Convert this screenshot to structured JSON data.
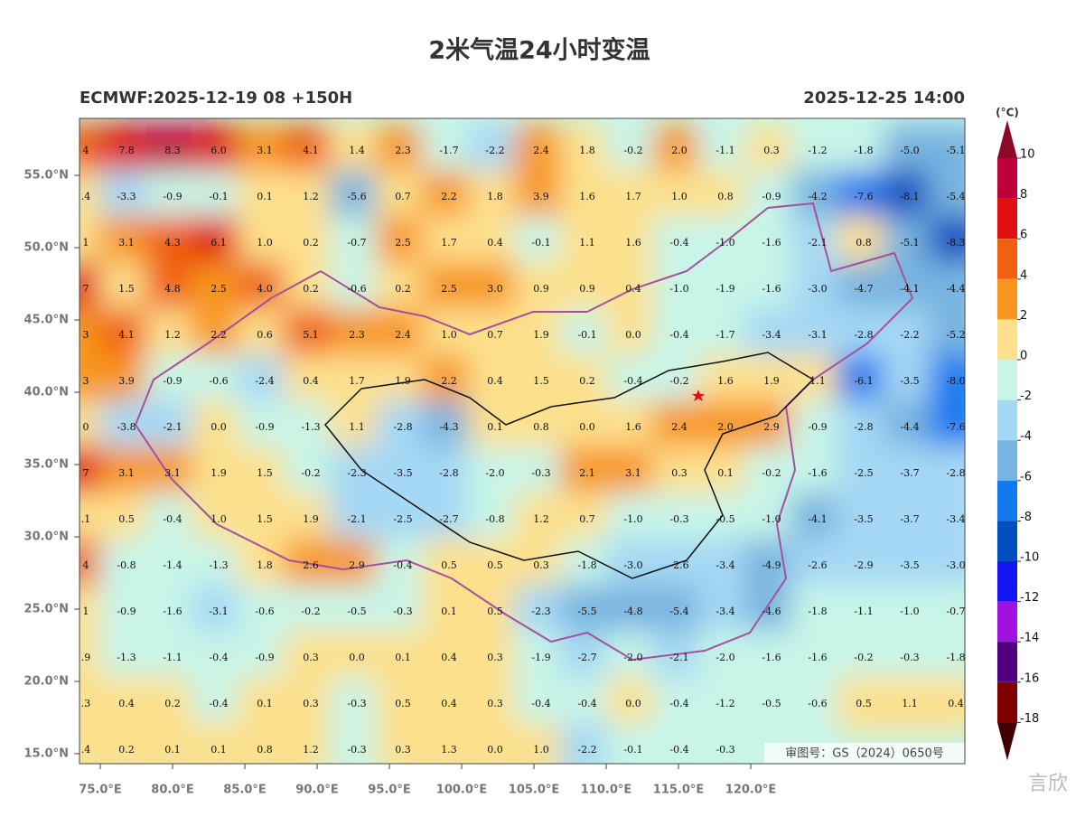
{
  "header": {
    "title": "2米气温24小时变温",
    "model_run": "ECMWF:2025-12-19 08 +150H",
    "valid_time": "2025-12-25 14:00"
  },
  "map": {
    "lonlim": [
      73.56,
      134.81
    ],
    "latlim": [
      14.31,
      58.94
    ],
    "xticks": [
      {
        "value": 75,
        "label": "75.0°E"
      },
      {
        "value": 80,
        "label": "80.0°E"
      },
      {
        "value": 85,
        "label": "85.0°E"
      },
      {
        "value": 90,
        "label": "90.0°E"
      },
      {
        "value": 95,
        "label": "95.0°E"
      },
      {
        "value": 100,
        "label": "100.0°E"
      },
      {
        "value": 105,
        "label": "105.0°E"
      },
      {
        "value": 110,
        "label": "110.0°E"
      },
      {
        "value": 115,
        "label": "115.0°E"
      },
      {
        "value": 120,
        "label": "120.0°E"
      }
    ],
    "yticks": [
      {
        "value": 55,
        "label": "55.0°N"
      },
      {
        "value": 50,
        "label": "50.0°N"
      },
      {
        "value": 45,
        "label": "45.0°N"
      },
      {
        "value": 40,
        "label": "40.0°N"
      },
      {
        "value": 35,
        "label": "35.0°N"
      },
      {
        "value": 30,
        "label": "30.0°N"
      },
      {
        "value": 25,
        "label": "25.0°N"
      },
      {
        "value": 20,
        "label": "20.0°N"
      },
      {
        "value": 15,
        "label": "15.0°N"
      }
    ],
    "grid_values": [
      [
        "4",
        "7.8",
        "8.3",
        "6.0",
        "3.1",
        "4.1",
        "1.4",
        "2.3",
        "-1.7",
        "-2.2",
        "2.4",
        "1.8",
        "-0.2",
        "2.0",
        "-1.1",
        "0.3",
        "-1.2",
        "-1.8",
        "-5.0",
        "-5.1"
      ],
      [
        ".4",
        "-3.3",
        "-0.9",
        "-0.1",
        "0.1",
        "1.2",
        "-5.6",
        "0.7",
        "2.2",
        "1.8",
        "3.9",
        "1.6",
        "1.7",
        "1.0",
        "0.8",
        "-0.9",
        "-4.2",
        "-7.6",
        "-8.1",
        "-5.4"
      ],
      [
        "1",
        "3.1",
        "4.3",
        "6.1",
        "1.0",
        "0.2",
        "-0.7",
        "2.5",
        "1.7",
        "0.4",
        "-0.1",
        "1.1",
        "1.6",
        "-0.4",
        "-1.0",
        "-1.6",
        "-2.1",
        "0.8",
        "-5.1",
        "-8.3"
      ],
      [
        "7",
        "1.5",
        "4.8",
        "2.5",
        "4.0",
        "0.2",
        "-0.6",
        "0.2",
        "2.5",
        "3.0",
        "0.9",
        "0.9",
        "0.4",
        "-1.0",
        "-1.9",
        "-1.6",
        "-3.0",
        "-4.7",
        "-4.1",
        "-4.4"
      ],
      [
        "3",
        "4.1",
        "1.2",
        "2.2",
        "0.6",
        "5.1",
        "2.3",
        "2.4",
        "1.0",
        "0.7",
        "1.9",
        "-0.1",
        "0.0",
        "-0.4",
        "-1.7",
        "-3.4",
        "-3.1",
        "-2.8",
        "-2.2",
        "-5.2"
      ],
      [
        "3",
        "3.9",
        "-0.9",
        "-0.6",
        "-2.4",
        "0.4",
        "1.7",
        "1.9",
        "2.2",
        "0.4",
        "1.5",
        "0.2",
        "-0.4",
        "-0.2",
        "1.6",
        "1.9",
        "1.1",
        "-6.1",
        "-3.5",
        "-8.0"
      ],
      [
        "0",
        "-3.8",
        "-2.1",
        "0.0",
        "-0.9",
        "-1.3",
        "1.1",
        "-2.8",
        "-4.3",
        "0.1",
        "0.8",
        "0.0",
        "1.6",
        "2.4",
        "2.0",
        "2.9",
        "-0.9",
        "-2.8",
        "-4.4",
        "-7.6"
      ],
      [
        "7",
        "3.1",
        "3.1",
        "1.9",
        "1.5",
        "-0.2",
        "-2.3",
        "-3.5",
        "-2.8",
        "-2.0",
        "-0.3",
        "2.1",
        "3.1",
        "0.3",
        "0.1",
        "-0.2",
        "-1.6",
        "-2.5",
        "-3.7",
        "-2.8"
      ],
      [
        ".1",
        "0.5",
        "-0.4",
        "1.0",
        "1.5",
        "1.9",
        "-2.1",
        "-2.5",
        "-2.7",
        "-0.8",
        "1.2",
        "0.7",
        "-1.0",
        "-0.3",
        "-0.5",
        "-1.0",
        "-4.1",
        "-3.5",
        "-3.7",
        "-3.4"
      ],
      [
        "4",
        "-0.8",
        "-1.4",
        "-1.3",
        "1.8",
        "2.6",
        "2.9",
        "-0.4",
        "0.5",
        "0.5",
        "0.3",
        "-1.8",
        "-3.0",
        "-2.6",
        "-3.4",
        "-4.9",
        "-2.6",
        "-2.9",
        "-3.5",
        "-3.0"
      ],
      [
        "1",
        "-0.9",
        "-1.6",
        "-3.1",
        "-0.6",
        "-0.2",
        "-0.5",
        "-0.3",
        "0.1",
        "0.5",
        "-2.3",
        "-5.5",
        "-4.8",
        "-5.4",
        "-3.4",
        "-4.6",
        "-1.8",
        "-1.1",
        "-1.0",
        "-0.7"
      ],
      [
        ".9",
        "-1.3",
        "-1.1",
        "-0.4",
        "-0.9",
        "0.3",
        "0.0",
        "0.1",
        "0.4",
        "0.3",
        "-1.9",
        "-2.7",
        "-2.0",
        "-2.1",
        "-2.0",
        "-1.6",
        "-1.6",
        "-0.2",
        "-0.3",
        "-1.8"
      ],
      [
        ".3",
        "0.4",
        "0.2",
        "-0.4",
        "0.1",
        "0.3",
        "-0.3",
        "0.5",
        "0.4",
        "0.3",
        "-0.4",
        "-0.4",
        "0.0",
        "-0.4",
        "-1.2",
        "-0.5",
        "-0.6",
        "0.5",
        "1.1",
        "0.4"
      ],
      [
        ".4",
        "0.2",
        "0.1",
        "0.1",
        "0.8",
        "1.2",
        "-0.3",
        "0.3",
        "1.3",
        "0.0",
        "1.0",
        "-2.2",
        "-0.1",
        "-0.4",
        "-0.3"
      ]
    ],
    "review_number": "审图号：GS（2024）0650号"
  },
  "colorbar": {
    "unit": "(°C)",
    "labels": [
      10,
      8,
      6,
      4,
      2,
      0,
      -2,
      -4,
      -6,
      -8,
      -10,
      -12,
      -14,
      -16,
      -18
    ],
    "colors": [
      "#8b0a2a",
      "#c0003a",
      "#e01010",
      "#f06010",
      "#f8961e",
      "#fde08c",
      "#c8f5e8",
      "#a4d8f4",
      "#78b4e0",
      "#1478f0",
      "#0050c0",
      "#1414f0",
      "#a012e0",
      "#500080",
      "#800000",
      "#400000"
    ]
  },
  "watermark": "言欣"
}
